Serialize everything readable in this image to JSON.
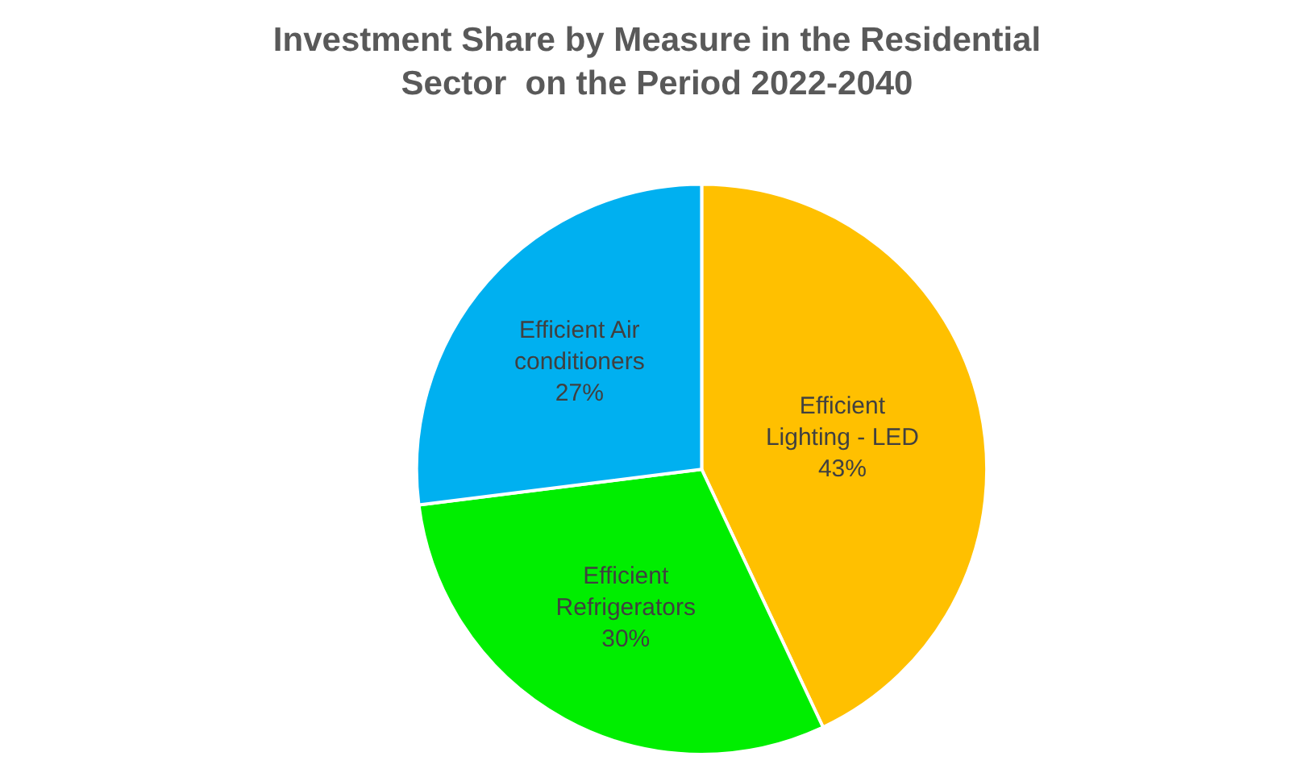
{
  "chart_data": {
    "type": "pie",
    "title": "Investment Share by Measure in the Residential\nSector  on the Period 2022-2040",
    "categories": [
      "Efficient\nLighting - LED",
      "Efficient\nRefrigerators",
      "Efficient Air\nconditioners"
    ],
    "values": [
      43,
      30,
      27
    ],
    "colors": [
      "#ffc000",
      "#00ee00",
      "#00b0f0"
    ],
    "value_labels": [
      "43%",
      "30%",
      "27%"
    ],
    "legend": false
  }
}
